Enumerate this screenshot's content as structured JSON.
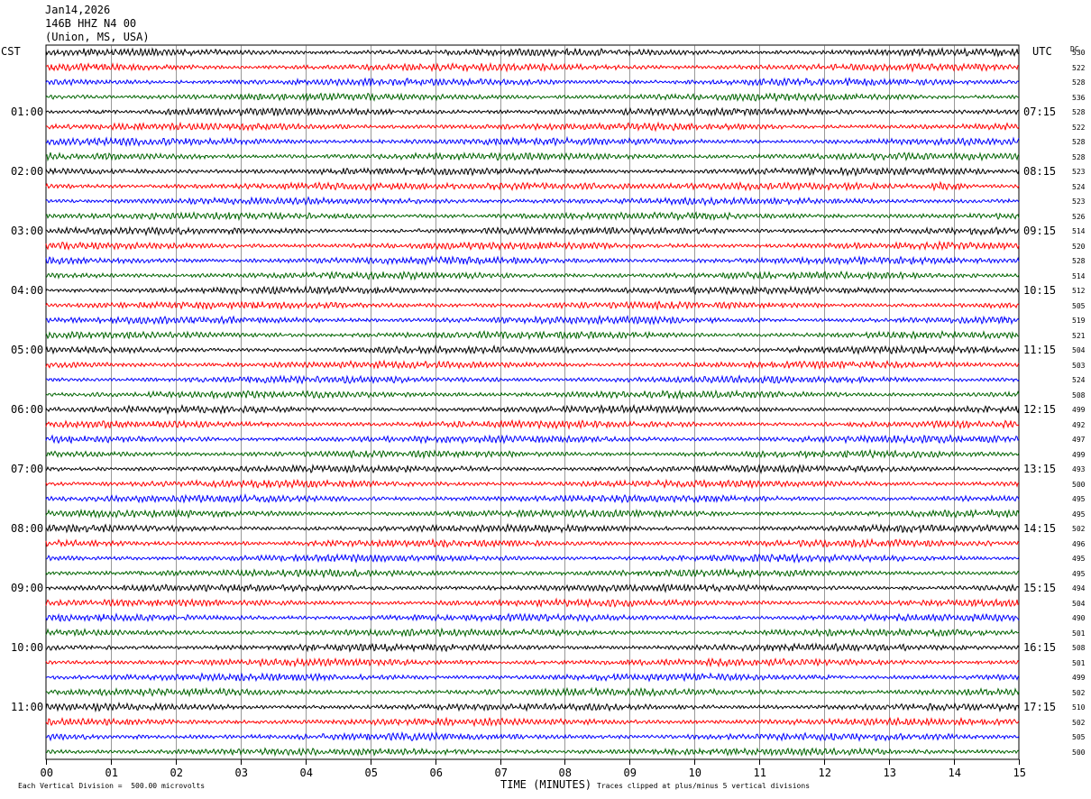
{
  "header": {
    "date": "Jan14,2026",
    "station": "146B HHZ N4 00",
    "location": "(Union, MS, USA)"
  },
  "left_tz": "CST",
  "right_tz": "UTC",
  "dc_header": "DC",
  "footer": {
    "scale": "Each Vertical Division =  500.00 microvolts",
    "xtitle": "TIME (MINUTES)",
    "clip": "Traces clipped at plus/minus 5 vertical divisions"
  },
  "colors": {
    "trace_cycle": [
      "#000000",
      "#ff0000",
      "#0000ff",
      "#006400"
    ],
    "grid": "#000000"
  },
  "chart_data": {
    "type": "line",
    "title": "146B HHZ N4 00 (Union, MS, USA) Jan14,2026",
    "xlabel": "TIME (MINUTES)",
    "ylabel": "",
    "xlim": [
      0,
      15
    ],
    "x_ticks": [
      "00",
      "01",
      "02",
      "03",
      "04",
      "05",
      "06",
      "07",
      "08",
      "09",
      "10",
      "11",
      "12",
      "13",
      "14",
      "15"
    ],
    "left_hour_labels": [
      "01:00",
      "02:00",
      "03:00",
      "04:00",
      "05:00",
      "06:00",
      "07:00",
      "08:00",
      "09:00",
      "10:00",
      "11:00"
    ],
    "right_hour_labels": [
      "07:15",
      "08:15",
      "09:15",
      "10:15",
      "11:15",
      "12:15",
      "13:15",
      "14:15",
      "15:15",
      "16:15",
      "17:15"
    ],
    "dc_offsets": [
      530,
      522,
      528,
      536,
      528,
      522,
      528,
      528,
      523,
      524,
      523,
      526,
      514,
      520,
      528,
      514,
      512,
      505,
      519,
      521,
      504,
      503,
      524,
      508,
      499,
      492,
      497,
      499,
      493,
      500,
      495,
      495,
      502,
      496,
      495,
      495,
      494,
      504,
      490,
      501,
      508,
      501,
      499,
      502,
      510,
      502,
      505,
      500
    ],
    "trace_count": 48,
    "trace_interval_minutes": 15,
    "event": {
      "trace_index": 9,
      "start_minute": 6.8,
      "end_minute": 9.0,
      "secondary_start_minute": 13.6,
      "secondary_end_minute": 14.3
    }
  }
}
